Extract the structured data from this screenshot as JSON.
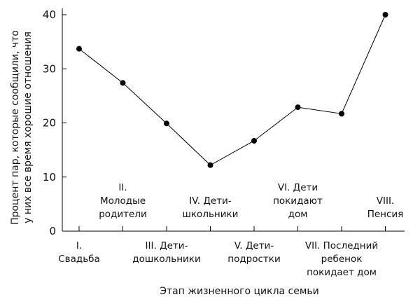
{
  "chart_data": {
    "type": "line",
    "xlabel": "Этап жизненного цикла семьи",
    "ylabel_lines": [
      "Процент пар, которые сообщили, что",
      "у них все время хорошие отношения"
    ],
    "ylim": [
      0,
      40
    ],
    "yticks": [
      0,
      10,
      20,
      30,
      40
    ],
    "grid": false,
    "categories": [
      {
        "lines": [
          "I.",
          "Свадьба"
        ],
        "position": "below"
      },
      {
        "lines": [
          "II.",
          "Молодые",
          "родители"
        ],
        "position": "inside"
      },
      {
        "lines": [
          "III. Дети-",
          "дошкольники"
        ],
        "position": "below"
      },
      {
        "lines": [
          "IV. Дети-",
          "школьники"
        ],
        "position": "inside"
      },
      {
        "lines": [
          "V. Дети-",
          "подростки"
        ],
        "position": "below"
      },
      {
        "lines": [
          "VI. Дети",
          "покидают",
          "дом"
        ],
        "position": "inside"
      },
      {
        "lines": [
          "VII. Последний",
          "ребенок",
          "покидает дом"
        ],
        "position": "below"
      },
      {
        "lines": [
          "VIII.",
          "Пенсия"
        ],
        "position": "inside"
      }
    ],
    "values": [
      33.7,
      27.4,
      19.9,
      12.2,
      16.7,
      22.9,
      21.7,
      40.0
    ]
  }
}
